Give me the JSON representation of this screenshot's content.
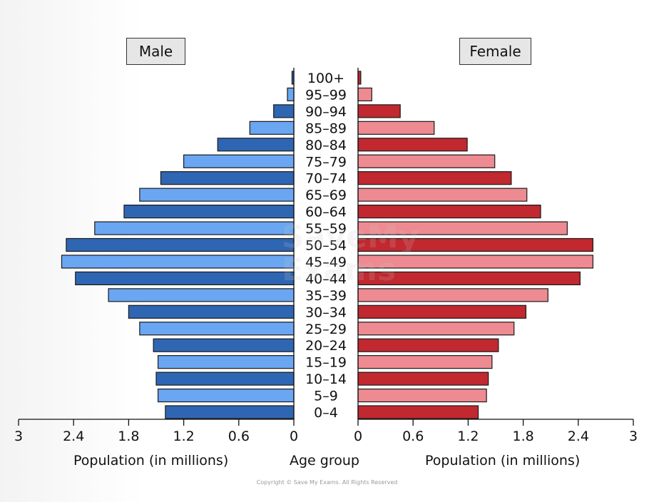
{
  "watermark": "SaveMy\nExams",
  "copyright": "Copyright © Save My Exams. All Rights Reserved",
  "chart_data": {
    "type": "bar",
    "orientation": "horizontal",
    "subtype": "population-pyramid",
    "categories": [
      "0–4",
      "5–9",
      "10–14",
      "15–19",
      "20–24",
      "25–29",
      "30–34",
      "35–39",
      "40–44",
      "45–49",
      "50–54",
      "55–59",
      "60–64",
      "65–69",
      "70–74",
      "75–79",
      "80–84",
      "85–89",
      "90–94",
      "95–99",
      "100+"
    ],
    "series": [
      {
        "name": "Male",
        "color_dark": "#2f66b3",
        "color_light": "#6aa6f2",
        "values": [
          1.4,
          1.48,
          1.5,
          1.48,
          1.53,
          1.68,
          1.8,
          2.02,
          2.38,
          2.53,
          2.48,
          2.17,
          1.85,
          1.68,
          1.45,
          1.2,
          0.83,
          0.48,
          0.22,
          0.07,
          0.02
        ]
      },
      {
        "name": "Female",
        "color_dark": "#c1282f",
        "color_light": "#ee8a91",
        "values": [
          1.31,
          1.4,
          1.42,
          1.46,
          1.53,
          1.7,
          1.83,
          2.07,
          2.42,
          2.56,
          2.56,
          2.28,
          1.99,
          1.84,
          1.67,
          1.49,
          1.19,
          0.83,
          0.46,
          0.15,
          0.03
        ]
      }
    ],
    "x_ticks": [
      "3",
      "2.4",
      "1.8",
      "1.2",
      "0.6",
      "0",
      "0",
      "0.6",
      "1.2",
      "1.8",
      "2.4",
      "3"
    ],
    "xlim": [
      0,
      3
    ],
    "xlabel_left": "Population (in millions)",
    "xlabel_center": "Age group",
    "xlabel_right": "Population (in millions)",
    "grid": false,
    "legend_left": "Male",
    "legend_right": "Female"
  }
}
